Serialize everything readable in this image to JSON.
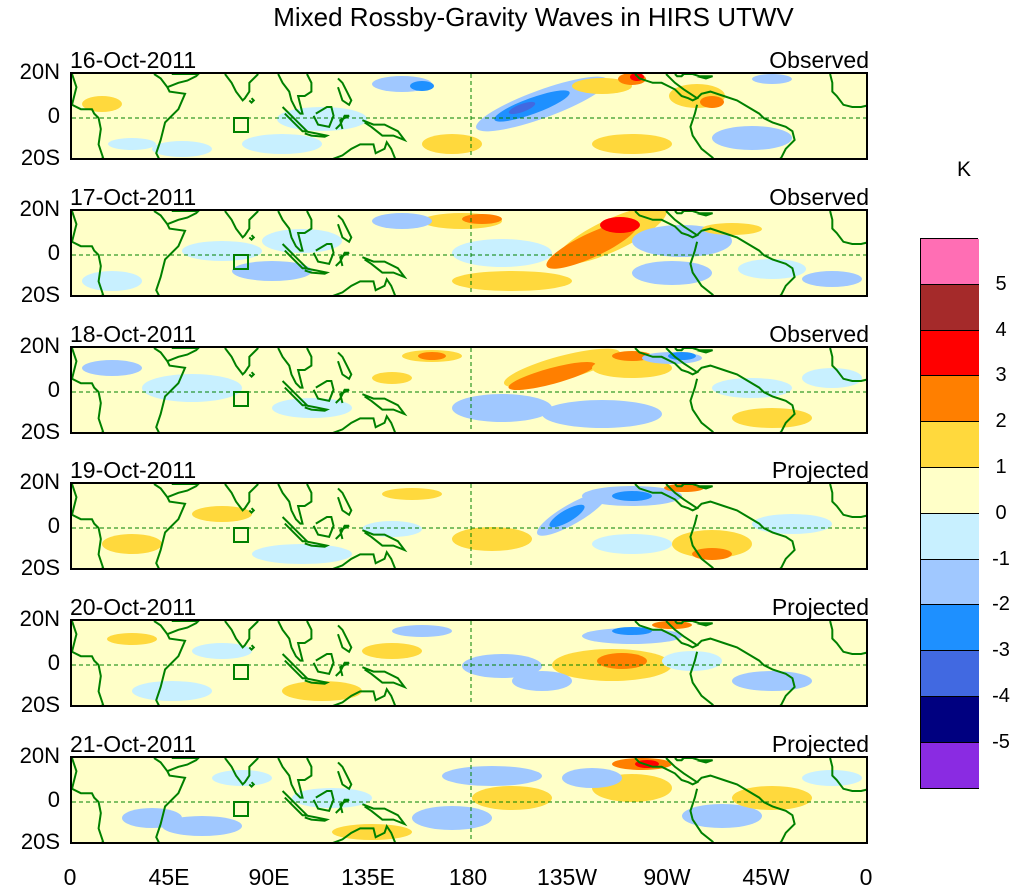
{
  "title": "Mixed Rossby-Gravity Waves in HIRS UTWV",
  "panels": [
    {
      "date": "16-Oct-2011",
      "kind": "Observed"
    },
    {
      "date": "17-Oct-2011",
      "kind": "Observed"
    },
    {
      "date": "18-Oct-2011",
      "kind": "Observed"
    },
    {
      "date": "19-Oct-2011",
      "kind": "Projected"
    },
    {
      "date": "20-Oct-2011",
      "kind": "Projected"
    },
    {
      "date": "21-Oct-2011",
      "kind": "Projected"
    }
  ],
  "lat_labels": {
    "north": "20N",
    "equator": "0",
    "south": "20S"
  },
  "lon_labels": [
    "0",
    "45E",
    "90E",
    "135E",
    "180",
    "135W",
    "90W",
    "45W",
    "0"
  ],
  "colorbar": {
    "unit": "K",
    "labels": [
      "5",
      "4",
      "3",
      "2",
      "1",
      "0",
      "-1",
      "-2",
      "-3",
      "-4",
      "-5"
    ],
    "colors": [
      "#ff6eb4",
      "#a52a2a",
      "#ff0000",
      "#ff7f00",
      "#ffd93d",
      "#ffffc8",
      "#c8f0ff",
      "#a0c8ff",
      "#1e90ff",
      "#4169e1",
      "#000080",
      "#8a2be2"
    ]
  },
  "palette": {
    "coast": "#008000",
    "background": "#ffffc8"
  }
}
